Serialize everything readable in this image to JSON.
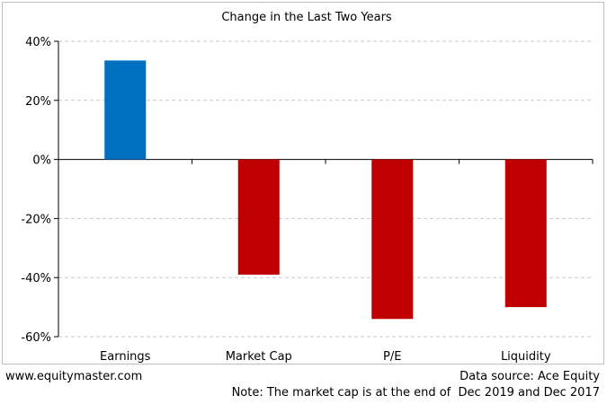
{
  "chart_data": {
    "type": "bar",
    "title": "Change in the Last Two Years",
    "categories": [
      "Earnings",
      "Market Cap",
      "P/E",
      "Liquidity"
    ],
    "values": [
      33.5,
      -39,
      -54,
      -50
    ],
    "value_unit": "%",
    "ylim": [
      -60,
      40
    ],
    "yticks": [
      40,
      20,
      0,
      -20,
      -40,
      -60
    ],
    "ytick_labels": [
      "40%",
      "20%",
      "0%",
      "-20%",
      "-40%",
      "-60%"
    ],
    "grid": true,
    "bar_colors": [
      "#0070C0",
      "#C00000",
      "#C00000",
      "#C00000"
    ]
  },
  "footer": {
    "website": "www.equitymaster.com",
    "source": "Data source: Ace Equity",
    "note": "Note: The market cap is at the end of  Dec 2019 and Dec 2017"
  }
}
